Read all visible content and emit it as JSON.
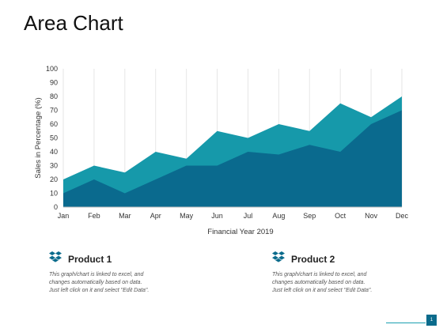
{
  "page": {
    "title": "Area Chart",
    "page_number": "1"
  },
  "chart_data": {
    "type": "area",
    "title": "",
    "xlabel": "Financial Year 2019",
    "ylabel": "Sales in Percentage (%)",
    "ylim": [
      0,
      100
    ],
    "y_ticks": [
      0,
      10,
      20,
      30,
      40,
      50,
      60,
      70,
      80,
      90,
      100
    ],
    "grid": "vertical",
    "categories": [
      "Jan",
      "Feb",
      "Mar",
      "Apr",
      "May",
      "Jun",
      "Jul",
      "Aug",
      "Sep",
      "Oct",
      "Nov",
      "Dec"
    ],
    "series": [
      {
        "name": "Product 1",
        "color": "#1699aa",
        "values": [
          20,
          30,
          25,
          40,
          35,
          55,
          50,
          60,
          55,
          75,
          65,
          80
        ]
      },
      {
        "name": "Product 2",
        "color": "#0a6a8e",
        "values": [
          10,
          20,
          10,
          20,
          30,
          30,
          40,
          38,
          45,
          40,
          60,
          70
        ]
      }
    ]
  },
  "legend": [
    {
      "name": "Product 1",
      "description": "This graph/chart is linked to excel, and\nchanges automatically based on data.\nJust left click on it and select \"Edit Data\"."
    },
    {
      "name": "Product 2",
      "description": "This graph/chart is linked to excel, and\nchanges automatically based on data.\nJust left click on it and select \"Edit Data\"."
    }
  ],
  "colors": {
    "icon": "#0b6b8c",
    "accent": "#1a9fb0"
  }
}
